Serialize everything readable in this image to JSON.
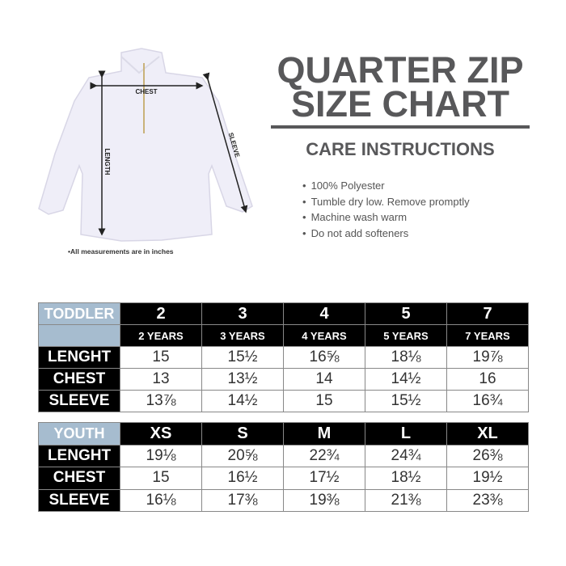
{
  "title": [
    "QUARTER ZIP",
    "SIZE CHART"
  ],
  "care_heading": "CARE INSTRUCTIONS",
  "care_items": [
    "100% Polyester",
    "Tumble dry low. Remove promptly",
    "Machine wash warm",
    "Do not add softeners"
  ],
  "diagram": {
    "chest": "CHEST",
    "length": "LENGTH",
    "sleeve": "SLEEVE",
    "note": "•All measurements are in inches"
  },
  "colors": {
    "header_blue": "#a6bccf",
    "title_gray": "#58585a",
    "header_black": "#000000"
  },
  "toddler": {
    "label": "TODDLER",
    "sizes": [
      "2",
      "3",
      "4",
      "5",
      "7"
    ],
    "ages": [
      "2 YEARS",
      "3 YEARS",
      "4 YEARS",
      "5 YEARS",
      "7 YEARS"
    ],
    "rows": [
      {
        "name": "LENGHT",
        "values": [
          "15",
          "15½",
          "16⅝",
          "18⅛",
          "19⅞"
        ]
      },
      {
        "name": "CHEST",
        "values": [
          "13",
          "13½",
          "14",
          "14½",
          "16"
        ]
      },
      {
        "name": "SLEEVE",
        "values": [
          "13⅞",
          "14½",
          "15",
          "15½",
          "16¾"
        ]
      }
    ]
  },
  "youth": {
    "label": "YOUTH",
    "sizes": [
      "XS",
      "S",
      "M",
      "L",
      "XL"
    ],
    "rows": [
      {
        "name": "LENGHT",
        "values": [
          "19⅛",
          "20⅝",
          "22¾",
          "24¾",
          "26⅜"
        ]
      },
      {
        "name": "CHEST",
        "values": [
          "15",
          "16½",
          "17½",
          "18½",
          "19½"
        ]
      },
      {
        "name": "SLEEVE",
        "values": [
          "16⅛",
          "17⅜",
          "19⅜",
          "21⅜",
          "23⅜"
        ]
      }
    ]
  }
}
